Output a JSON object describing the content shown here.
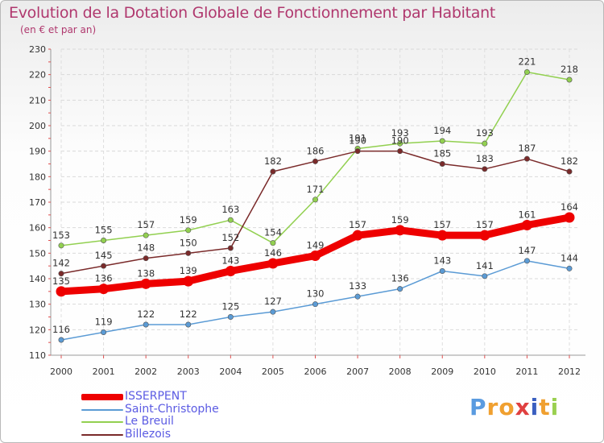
{
  "title": "Evolution de la Dotation Globale de Fonctionnement par Habitant",
  "subtitle": "(en € et par an)",
  "logo": {
    "text": [
      "P",
      "r",
      "o",
      "x",
      "i",
      "t",
      "i"
    ],
    "colors": [
      "#5a9be0",
      "#f0a030",
      "#f0a030",
      "#e04040",
      "#3a5fc0",
      "#f0a030",
      "#9ad050"
    ]
  },
  "chart_data": {
    "type": "line",
    "title": "Evolution de la Dotation Globale de Fonctionnement par Habitant",
    "subtitle": "(en € et par an)",
    "xlabel": "",
    "ylabel": "",
    "x": [
      "2000",
      "2001",
      "2002",
      "2003",
      "2004",
      "2005",
      "2006",
      "2007",
      "2008",
      "2009",
      "2010",
      "2011",
      "2012"
    ],
    "ylim": [
      110,
      230
    ],
    "yticks": [
      110,
      120,
      130,
      140,
      150,
      160,
      170,
      180,
      190,
      200,
      210,
      220,
      230
    ],
    "grid": true,
    "series": [
      {
        "name": "ISSERPENT",
        "color": "#ee0000",
        "values": [
          135,
          136,
          138,
          139,
          143,
          146,
          149,
          157,
          159,
          157,
          157,
          161,
          164
        ]
      },
      {
        "name": "Saint-Christophe",
        "color": "#5b9bd5",
        "values": [
          116,
          119,
          122,
          122,
          125,
          127,
          130,
          133,
          136,
          143,
          141,
          147,
          144
        ]
      },
      {
        "name": "Le Breuil",
        "color": "#92d050",
        "values": [
          153,
          155,
          157,
          159,
          163,
          154,
          171,
          191,
          193,
          194,
          193,
          221,
          218
        ]
      },
      {
        "name": "Billezois",
        "color": "#7a2a2a",
        "values": [
          142,
          145,
          148,
          150,
          152,
          182,
          186,
          190,
          190,
          185,
          183,
          187,
          182
        ]
      }
    ]
  }
}
